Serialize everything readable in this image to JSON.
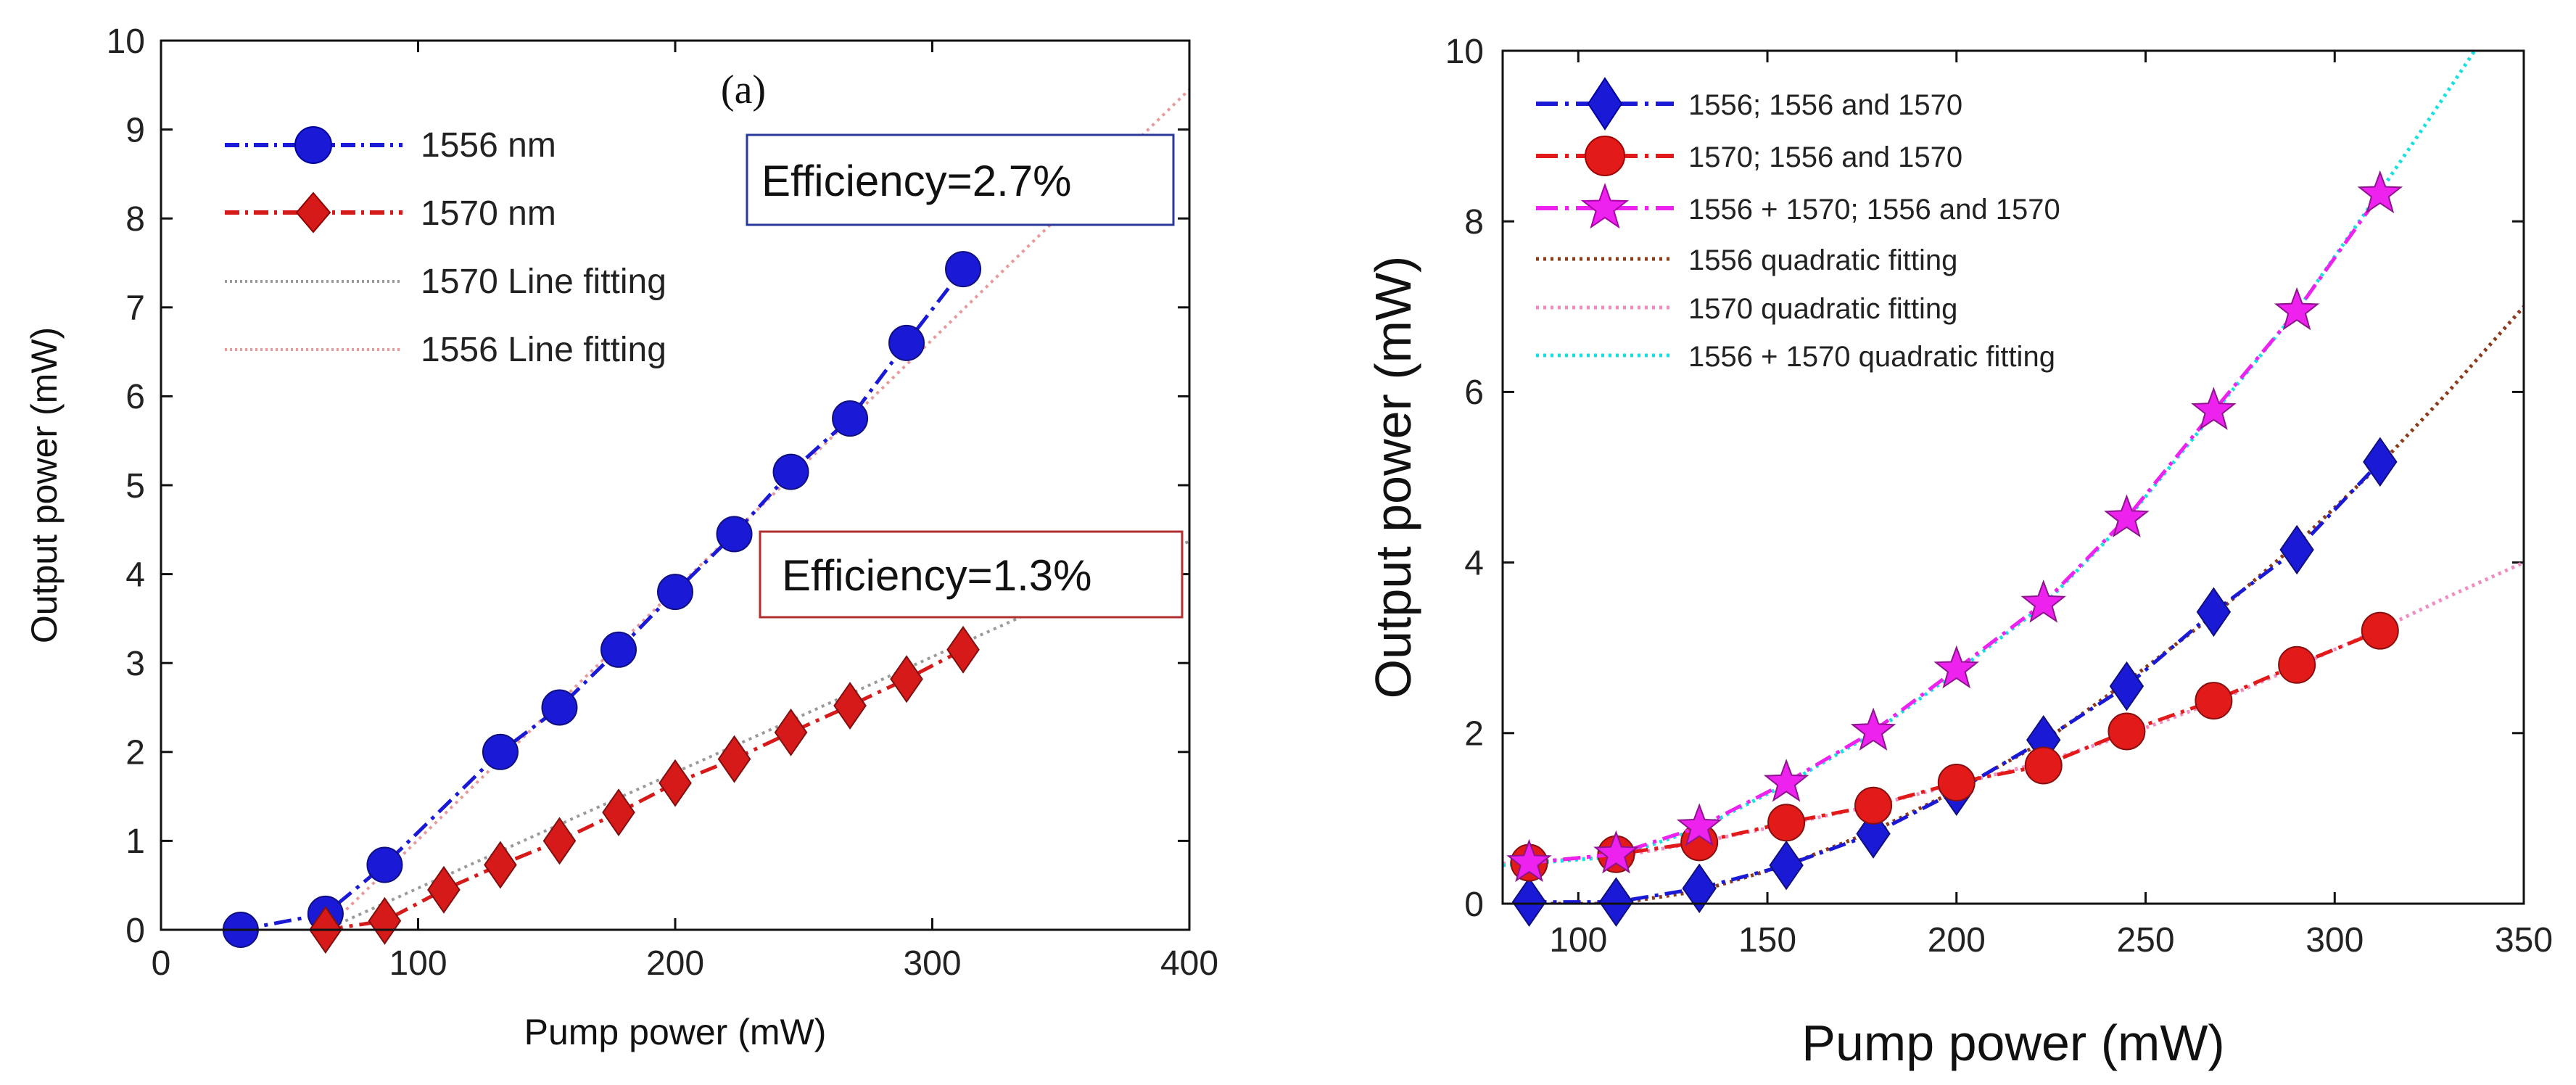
{
  "chart_data": [
    {
      "type": "line",
      "panel_label": "(a)",
      "xlabel": "Pump power (mW)",
      "ylabel": "Output power (mW)",
      "xlim": [
        0,
        400
      ],
      "ylim": [
        0,
        10
      ],
      "xticks": [
        0,
        100,
        200,
        300,
        400
      ],
      "yticks": [
        0,
        1,
        2,
        3,
        4,
        5,
        6,
        7,
        8,
        9,
        10
      ],
      "legend_position": "top-left",
      "series": [
        {
          "name": "1556 nm",
          "color": "#1a1ad6",
          "marker": "circle",
          "line": "dash-dot",
          "x": [
            31,
            64,
            87,
            132,
            155,
            178,
            200,
            223,
            245,
            268,
            290,
            312
          ],
          "y": [
            0.0,
            0.18,
            0.73,
            2.0,
            2.5,
            3.15,
            3.8,
            4.45,
            5.15,
            5.75,
            6.6,
            7.43
          ]
        },
        {
          "name": "1570 nm",
          "color": "#d61a1a",
          "marker": "diamond",
          "line": "dash-dot",
          "x": [
            64,
            87,
            110,
            132,
            155,
            178,
            200,
            223,
            245,
            268,
            290,
            312
          ],
          "y": [
            0.0,
            0.1,
            0.45,
            0.73,
            1.0,
            1.32,
            1.65,
            1.92,
            2.22,
            2.52,
            2.82,
            3.15
          ]
        },
        {
          "name": "1570 Line fitting",
          "color": "#9a9a9a",
          "marker": "none",
          "line": "dotted",
          "x": [
            64,
            400
          ],
          "y": [
            0.0,
            4.37
          ]
        },
        {
          "name": "1556 Line fitting",
          "color": "#e89a9a",
          "marker": "none",
          "line": "dotted",
          "x": [
            64,
            400
          ],
          "y": [
            0.0,
            9.45
          ]
        }
      ],
      "annotations": [
        {
          "text": "Efficiency=2.7%",
          "border_color": "#2a3a9a"
        },
        {
          "text": "Efficiency=1.3%",
          "border_color": "#b03030"
        }
      ]
    },
    {
      "type": "line",
      "xlabel": "Pump power (mW)",
      "ylabel": "Output power (mW)",
      "xlim": [
        80,
        350
      ],
      "ylim": [
        0,
        10
      ],
      "xticks": [
        100,
        150,
        200,
        250,
        300,
        350
      ],
      "yticks": [
        0,
        2,
        4,
        6,
        8,
        10
      ],
      "legend_position": "top-left",
      "series": [
        {
          "name": "1556; 1556 and 1570",
          "color": "#1a1ad6",
          "marker": "diamond",
          "line": "dash-dot",
          "x": [
            87,
            110,
            132,
            155,
            178,
            200,
            223,
            245,
            268,
            290,
            312
          ],
          "y": [
            0.02,
            0.02,
            0.18,
            0.45,
            0.82,
            1.32,
            1.92,
            2.55,
            3.42,
            4.15,
            5.18
          ]
        },
        {
          "name": "1570; 1556 and 1570",
          "color": "#e31a1a",
          "marker": "circle",
          "line": "dash-dot",
          "x": [
            87,
            110,
            132,
            155,
            178,
            200,
            223,
            245,
            268,
            290,
            312
          ],
          "y": [
            0.48,
            0.58,
            0.72,
            0.95,
            1.15,
            1.42,
            1.62,
            2.02,
            2.38,
            2.8,
            3.2
          ]
        },
        {
          "name": "1556 + 1570; 1556 and 1570",
          "color": "#ee22ee",
          "marker": "star",
          "line": "dash-dot",
          "x": [
            87,
            110,
            132,
            155,
            178,
            200,
            223,
            245,
            268,
            290,
            312
          ],
          "y": [
            0.48,
            0.58,
            0.9,
            1.42,
            2.02,
            2.75,
            3.52,
            4.52,
            5.78,
            6.95,
            8.32
          ]
        },
        {
          "name": "1556 quadratic fitting",
          "color": "#8b3a1a",
          "marker": "none",
          "line": "dotted",
          "x": [
            87,
            110,
            132,
            155,
            178,
            200,
            223,
            245,
            268,
            290,
            312,
            330,
            350
          ],
          "y": [
            0.0,
            0.0,
            0.15,
            0.45,
            0.85,
            1.33,
            1.9,
            2.6,
            3.38,
            4.22,
            5.15,
            6.0,
            7.0
          ]
        },
        {
          "name": "1570 quadratic fitting",
          "color": "#f08cc0",
          "marker": "none",
          "line": "dotted",
          "x": [
            80,
            110,
            132,
            155,
            178,
            200,
            223,
            245,
            268,
            290,
            312,
            330,
            350
          ],
          "y": [
            0.47,
            0.55,
            0.72,
            0.93,
            1.15,
            1.4,
            1.66,
            1.98,
            2.36,
            2.78,
            3.22,
            3.6,
            4.0
          ]
        },
        {
          "name": "1556 + 1570 quadratic fitting",
          "color": "#19e0e0",
          "marker": "none",
          "line": "dotted",
          "x": [
            80,
            110,
            132,
            155,
            178,
            200,
            223,
            245,
            268,
            290,
            312,
            325,
            337
          ],
          "y": [
            0.45,
            0.55,
            0.88,
            1.4,
            2.0,
            2.72,
            3.5,
            4.5,
            5.75,
            6.95,
            8.35,
            9.2,
            10.0
          ]
        }
      ]
    }
  ]
}
